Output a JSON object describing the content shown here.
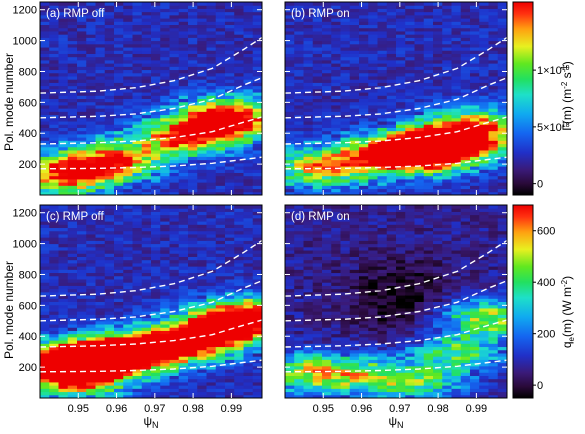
{
  "chart_data": [
    {
      "type": "heatmap",
      "panel_label": "(a) RMP off",
      "xlabel": "",
      "ylabel": "Pol. mode number",
      "xlim": [
        0.94,
        0.998
      ],
      "ylim": [
        0,
        1250
      ],
      "colorscale": "Γ(m)",
      "hotspots": [
        {
          "x": 0.99,
          "y": 520,
          "w": 0.7
        },
        {
          "x": 0.985,
          "y": 430,
          "w": 0.6
        },
        {
          "x": 0.975,
          "y": 360,
          "w": 0.5
        },
        {
          "x": 0.96,
          "y": 230,
          "w": 0.55
        },
        {
          "x": 0.95,
          "y": 170,
          "w": 0.5
        },
        {
          "x": 0.945,
          "y": 110,
          "w": 0.45
        }
      ]
    },
    {
      "type": "heatmap",
      "panel_label": "(b) RMP on",
      "xlabel": "",
      "ylabel": "",
      "xlim": [
        0.94,
        0.998
      ],
      "ylim": [
        0,
        1250
      ],
      "colorscale": "Γ(m)",
      "hotspots": [
        {
          "x": 0.978,
          "y": 300,
          "w": 0.9
        },
        {
          "x": 0.97,
          "y": 270,
          "w": 0.8
        },
        {
          "x": 0.985,
          "y": 340,
          "w": 0.7
        },
        {
          "x": 0.99,
          "y": 450,
          "w": 0.55
        },
        {
          "x": 0.955,
          "y": 210,
          "w": 0.45
        },
        {
          "x": 0.945,
          "y": 160,
          "w": 0.35
        }
      ]
    },
    {
      "type": "heatmap",
      "panel_label": "(c) RMP off",
      "xlabel": "ψN",
      "ylabel": "Pol. mode number",
      "xlim": [
        0.94,
        0.998
      ],
      "ylim": [
        0,
        1250
      ],
      "colorscale": "q_e(m)",
      "hotspots": [
        {
          "x": 0.945,
          "y": 230,
          "w": 0.95
        },
        {
          "x": 0.955,
          "y": 260,
          "w": 0.8
        },
        {
          "x": 0.965,
          "y": 300,
          "w": 0.7
        },
        {
          "x": 0.975,
          "y": 340,
          "w": 0.65
        },
        {
          "x": 0.985,
          "y": 420,
          "w": 0.7
        },
        {
          "x": 0.993,
          "y": 520,
          "w": 0.95
        },
        {
          "x": 0.95,
          "y": 120,
          "w": 0.6
        }
      ]
    },
    {
      "type": "heatmap",
      "panel_label": "(d) RMP on",
      "xlabel": "ψN",
      "ylabel": "",
      "xlim": [
        0.94,
        0.998
      ],
      "ylim": [
        0,
        1250
      ],
      "colorscale": "q_e(m)",
      "hotspots": [
        {
          "x": 0.945,
          "y": 170,
          "w": 0.5
        },
        {
          "x": 0.96,
          "y": 150,
          "w": 0.45
        },
        {
          "x": 0.985,
          "y": 300,
          "w": 0.45
        },
        {
          "x": 0.993,
          "y": 520,
          "w": 0.55
        },
        {
          "x": 0.975,
          "y": 100,
          "w": 0.4
        }
      ]
    }
  ],
  "axes": {
    "y_ticks": [
      "200",
      "400",
      "600",
      "800",
      "1000",
      "1200"
    ],
    "y_tick_values": [
      200,
      400,
      600,
      800,
      1000,
      1200
    ],
    "x_ticks": [
      "0.95",
      "0.96",
      "0.97",
      "0.98",
      "0.99"
    ],
    "x_tick_values": [
      0.95,
      0.96,
      0.97,
      0.98,
      0.99
    ],
    "ylabel": "Pol. mode number",
    "xlabel_main": "ψ",
    "xlabel_sub": "N"
  },
  "colorbars": [
    {
      "title_main": "Γ(m) (m",
      "title_sup1": "-2",
      "title_mid": " s",
      "title_sup2": "-1",
      "title_end": ")",
      "range": [
        -1e+18,
        1.6e+19
      ],
      "ticks": [
        {
          "value": 0,
          "text": "0",
          "sup": ""
        },
        {
          "value": 5e+18,
          "text": "5×10",
          "sup": "18"
        },
        {
          "value": 1e+19,
          "text": "1×10",
          "sup": "19"
        }
      ]
    },
    {
      "title_main": "q",
      "title_sub": "e",
      "title_mid": "(m) (W m",
      "title_sup": "-2",
      "title_end": ")",
      "range": [
        -50,
        700
      ],
      "ticks": [
        {
          "value": 0,
          "text": "0",
          "sup": ""
        },
        {
          "value": 200,
          "text": "200",
          "sup": ""
        },
        {
          "value": 400,
          "text": "400",
          "sup": ""
        },
        {
          "value": 600,
          "text": "600",
          "sup": ""
        }
      ]
    }
  ],
  "dashed_curves": [
    {
      "name": "m-curve-1",
      "points": [
        [
          0.94,
          170
        ],
        [
          0.955,
          172
        ],
        [
          0.965,
          178
        ],
        [
          0.975,
          188
        ],
        [
          0.985,
          205
        ],
        [
          0.993,
          230
        ],
        [
          0.998,
          245
        ]
      ]
    },
    {
      "name": "m-curve-2",
      "points": [
        [
          0.94,
          330
        ],
        [
          0.955,
          338
        ],
        [
          0.965,
          350
        ],
        [
          0.975,
          372
        ],
        [
          0.985,
          410
        ],
        [
          0.993,
          470
        ],
        [
          0.998,
          505
        ]
      ]
    },
    {
      "name": "m-curve-3",
      "points": [
        [
          0.94,
          500
        ],
        [
          0.955,
          510
        ],
        [
          0.965,
          525
        ],
        [
          0.975,
          560
        ],
        [
          0.985,
          620
        ],
        [
          0.993,
          710
        ],
        [
          0.998,
          760
        ]
      ]
    },
    {
      "name": "m-curve-4",
      "points": [
        [
          0.94,
          660
        ],
        [
          0.955,
          672
        ],
        [
          0.965,
          695
        ],
        [
          0.975,
          740
        ],
        [
          0.985,
          820
        ],
        [
          0.993,
          940
        ],
        [
          0.998,
          1020
        ]
      ]
    }
  ],
  "colors": {
    "background": "#ffffff",
    "axis": "#000000",
    "dashed_line": "#ffffff",
    "label_text": "#ffffff"
  }
}
